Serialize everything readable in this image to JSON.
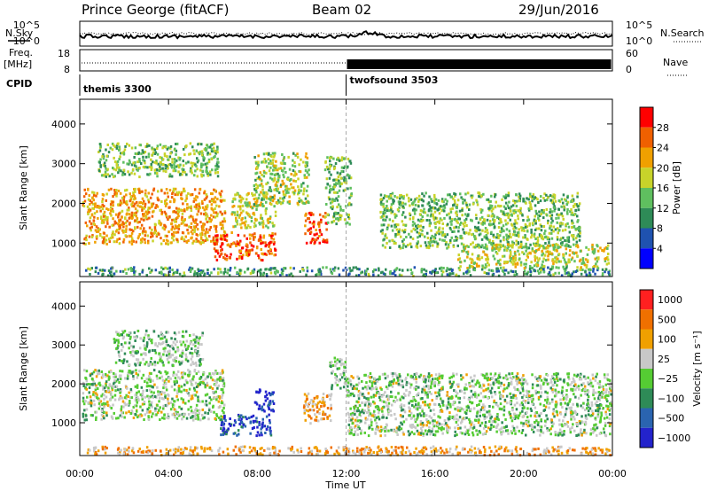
{
  "header": {
    "station": "Prince George (fitACF)",
    "beam": "Beam 02",
    "date": "29/Jun/2016"
  },
  "noise_panel": {
    "left_label": "N.Sky",
    "right_label": "N.Search",
    "left_ticks": [
      "10^5",
      "10^0"
    ],
    "right_ticks": [
      "10^5",
      "10^0"
    ]
  },
  "freq_panel": {
    "left_label_1": "Freq.",
    "left_label_2": "[MHz]",
    "right_label": "Nave",
    "left_ticks": [
      "18",
      "8"
    ],
    "right_ticks": [
      "60",
      "0"
    ]
  },
  "cpid": {
    "label": "CPID",
    "segments": [
      {
        "name": "themis 3300",
        "start_hour": 0,
        "end_hour": 12
      },
      {
        "name": "twofsound 3503",
        "start_hour": 12,
        "end_hour": 24
      }
    ]
  },
  "x_axis": {
    "title": "Time UT",
    "ticks": [
      "00:00",
      "04:00",
      "08:00",
      "12:00",
      "16:00",
      "20:00",
      "00:00"
    ]
  },
  "colors": {
    "power": [
      "#0000ff",
      "#1f52b0",
      "#2e8b57",
      "#5fbf5f",
      "#c8d32a",
      "#f0a000",
      "#f06000",
      "#ff0000"
    ],
    "velocity": [
      "#2323cc",
      "#2a64b0",
      "#2e8b57",
      "#55cc33",
      "#c8c8c8",
      "#f0a000",
      "#f07000",
      "#ff2020"
    ]
  },
  "chart_data": [
    {
      "type": "heatmap",
      "title": "",
      "xlabel": "Time UT",
      "ylabel": "Slant Range [km]",
      "xlim_hours": [
        0,
        24
      ],
      "ylim": [
        180,
        4600
      ],
      "yticks": [
        1000,
        2000,
        3000,
        4000
      ],
      "colorbar": {
        "label": "Power [dB]",
        "ticks": [
          "4",
          "8",
          "12",
          "16",
          "20",
          "24",
          "28"
        ],
        "range": [
          0,
          30
        ]
      },
      "regions": [
        {
          "t0": 0.1,
          "t1": 6.5,
          "r0": 1000,
          "r1": 2400,
          "level": 0.7
        },
        {
          "t0": 0.8,
          "t1": 6.2,
          "r0": 2700,
          "r1": 3550,
          "level": 0.45
        },
        {
          "t0": 6.0,
          "t1": 8.8,
          "r0": 600,
          "r1": 1300,
          "level": 0.85
        },
        {
          "t0": 6.8,
          "t1": 8.8,
          "r0": 1400,
          "r1": 2300,
          "level": 0.55
        },
        {
          "t0": 7.8,
          "t1": 10.3,
          "r0": 2000,
          "r1": 3300,
          "level": 0.5
        },
        {
          "t0": 10.1,
          "t1": 11.1,
          "r0": 1000,
          "r1": 1800,
          "level": 0.85
        },
        {
          "t0": 11.0,
          "t1": 12.2,
          "r0": 1500,
          "r1": 3200,
          "level": 0.45
        },
        {
          "t0": 13.5,
          "t1": 22.5,
          "r0": 900,
          "r1": 2300,
          "level": 0.45
        },
        {
          "t0": 17.0,
          "t1": 23.8,
          "r0": 400,
          "r1": 1000,
          "level": 0.55
        },
        {
          "t0": 0.2,
          "t1": 23.9,
          "r0": 200,
          "r1": 420,
          "level": 0.35
        }
      ]
    },
    {
      "type": "heatmap",
      "title": "",
      "xlabel": "Time UT",
      "ylabel": "Slant Range [km]",
      "xlim_hours": [
        0,
        24
      ],
      "ylim": [
        180,
        4600
      ],
      "yticks": [
        1000,
        2000,
        3000,
        4000
      ],
      "colorbar": {
        "label": "Velocity [m s⁻¹]",
        "ticks": [
          "1000",
          "500",
          "100",
          "25",
          "−25",
          "−100",
          "−500",
          "−1000"
        ]
      },
      "regions": [
        {
          "t0": 0.1,
          "t1": 6.5,
          "r0": 1100,
          "r1": 2400,
          "level": 0.5
        },
        {
          "t0": 1.5,
          "t1": 5.5,
          "r0": 2500,
          "r1": 3400,
          "level": 0.45
        },
        {
          "t0": 6.3,
          "t1": 8.6,
          "r0": 700,
          "r1": 1250,
          "level": 0.15
        },
        {
          "t0": 7.8,
          "t1": 8.7,
          "r0": 1300,
          "r1": 1900,
          "level": 0.1
        },
        {
          "t0": 10.0,
          "t1": 11.3,
          "r0": 1000,
          "r1": 1800,
          "level": 0.7
        },
        {
          "t0": 11.2,
          "t1": 12.0,
          "r0": 1900,
          "r1": 2700,
          "level": 0.45
        },
        {
          "t0": 12.0,
          "t1": 23.9,
          "r0": 700,
          "r1": 2300,
          "level": 0.48
        },
        {
          "t0": 0.2,
          "t1": 23.9,
          "r0": 200,
          "r1": 420,
          "level": 0.7
        }
      ]
    }
  ]
}
